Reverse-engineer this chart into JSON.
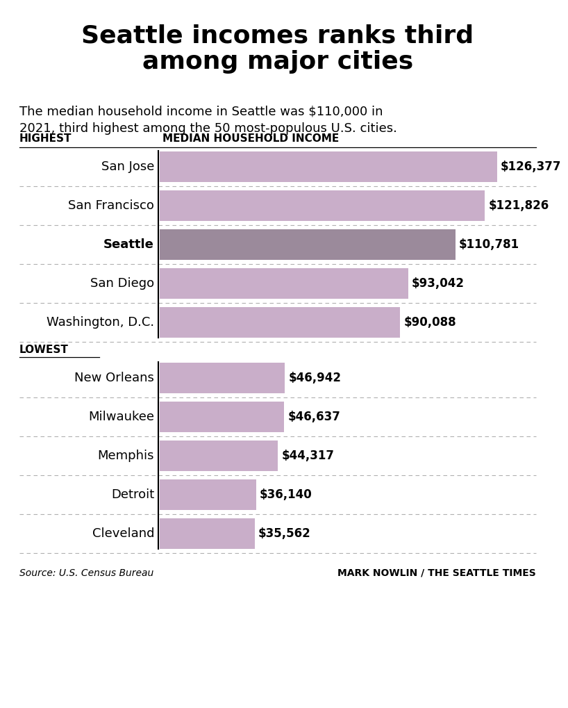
{
  "title": "Seattle incomes ranks third\namong major cities",
  "subtitle": "The median household income in Seattle was $110,000 in\n2021, third highest among the 50 most-populous U.S. cities.",
  "highest_label": "HIGHEST",
  "lowest_label": "LOWEST",
  "col_header": "MEDIAN HOUSEHOLD INCOME",
  "highest_cities": [
    "San Jose",
    "San Francisco",
    "Seattle",
    "San Diego",
    "Washington, D.C."
  ],
  "highest_values": [
    126377,
    121826,
    110781,
    93042,
    90088
  ],
  "highest_labels": [
    "$126,377",
    "$121,826",
    "$110,781",
    "$93,042",
    "$90,088"
  ],
  "lowest_cities": [
    "New Orleans",
    "Milwaukee",
    "Memphis",
    "Detroit",
    "Cleveland"
  ],
  "lowest_values": [
    46942,
    46637,
    44317,
    36140,
    35562
  ],
  "lowest_labels": [
    "$46,942",
    "$46,637",
    "$44,317",
    "$36,140",
    "$35,562"
  ],
  "bar_color_light": "#c9aec9",
  "bar_color_seattle": "#9b8a9b",
  "background_color": "#ffffff",
  "source_text": "Source: U.S. Census Bureau",
  "credit_text": "MARK NOWLIN / THE SEATTLE TIMES",
  "max_value": 140000,
  "title_fontsize": 26,
  "subtitle_fontsize": 13,
  "header_fontsize": 11,
  "city_fontsize": 13,
  "value_fontsize": 12
}
